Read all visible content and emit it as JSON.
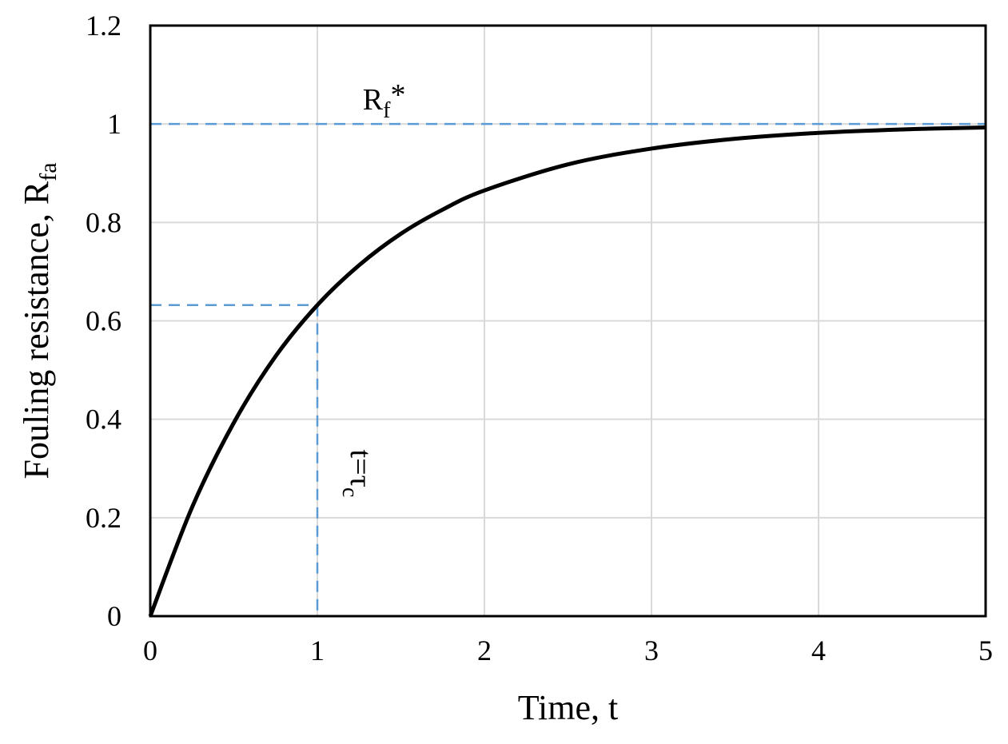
{
  "chart_data": {
    "type": "line",
    "xlabel": "Time, t",
    "ylabel_main": "Fouling resistance, R",
    "ylabel_sub": "fa",
    "xlim": [
      0,
      5
    ],
    "ylim": [
      0,
      1.2
    ],
    "x_ticks": [
      "0",
      "1",
      "2",
      "3",
      "4",
      "5"
    ],
    "y_ticks": [
      "0",
      "0.2",
      "0.4",
      "0.6",
      "0.8",
      "1",
      "1.2"
    ],
    "grid": true,
    "legend": "none",
    "series": [
      {
        "x": [
          0,
          0.25,
          0.5,
          0.75,
          1,
          1.25,
          1.5,
          1.75,
          2,
          2.5,
          3,
          3.5,
          4,
          4.5,
          5
        ],
        "y": [
          0,
          0.221,
          0.393,
          0.528,
          0.632,
          0.713,
          0.777,
          0.826,
          0.865,
          0.918,
          0.95,
          0.97,
          0.982,
          0.989,
          0.993
        ],
        "color": "#000000"
      }
    ],
    "reference_lines": {
      "asymptote_y": 1,
      "time_constant_x": 1,
      "time_constant_y": 0.632,
      "color": "#5b9bd5"
    },
    "annotations": {
      "asymptote_main": "R",
      "asymptote_sub": "f",
      "asymptote_sup": "*",
      "tc_main": "t=τ",
      "tc_sub": "c"
    }
  }
}
